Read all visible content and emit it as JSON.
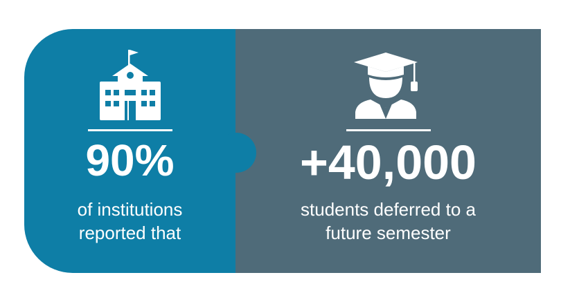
{
  "colors": {
    "left_panel": "#0e7ea6",
    "right_panel": "#4f6b79",
    "text": "#ffffff"
  },
  "stats": [
    {
      "icon": "school-building-icon",
      "value": "90%",
      "caption_lines": [
        "of institutions",
        "reported that"
      ]
    },
    {
      "icon": "graduate-student-icon",
      "value": "+40,000",
      "caption_lines": [
        "students deferred to a",
        "future semester"
      ]
    }
  ]
}
